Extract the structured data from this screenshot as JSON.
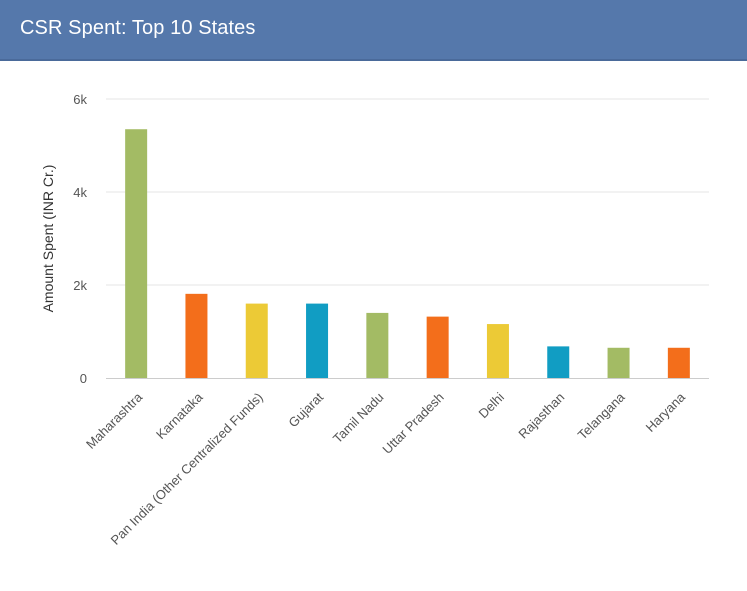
{
  "header": {
    "title": "CSR Spent: Top 10 States"
  },
  "chart_data": {
    "type": "bar",
    "title": "",
    "xlabel": "",
    "ylabel": "Amount Spent (INR Cr.)",
    "ylim": [
      0,
      6000
    ],
    "yticks": [
      0,
      2000,
      4000,
      6000
    ],
    "ytick_labels": [
      "0",
      "2k",
      "4k",
      "6k"
    ],
    "grid": true,
    "categories": [
      "Maharashtra",
      "Karnataka",
      "Pan India (Other Centralized Funds)",
      "Gujarat",
      "Tamil Nadu",
      "Uttar Pradesh",
      "Delhi",
      "Rajasthan",
      "Telangana",
      "Haryana"
    ],
    "values": [
      5350,
      1810,
      1600,
      1600,
      1400,
      1320,
      1160,
      680,
      650,
      650
    ],
    "colors": [
      "#a3bb64",
      "#f36e1b",
      "#ecca36",
      "#119dc3",
      "#a3bb64",
      "#f36e1b",
      "#ecca36",
      "#119dc3",
      "#a3bb64",
      "#f36e1b"
    ]
  }
}
